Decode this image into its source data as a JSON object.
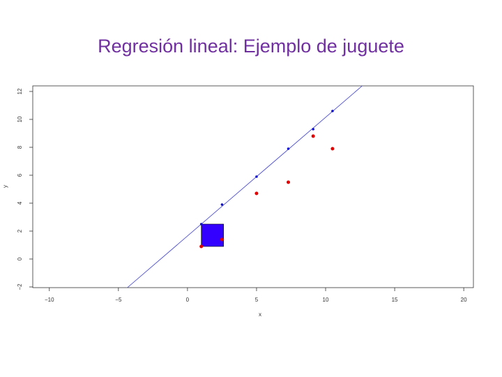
{
  "chart_data": {
    "type": "scatter",
    "title": "Regresión lineal: Ejemplo de juguete",
    "x_label": "x",
    "y_label": "y",
    "x": [
      1,
      2.5,
      5,
      7.3,
      9.1,
      10.5
    ],
    "series": [
      {
        "color": "#e00000",
        "values": [
          0.9,
          1.4,
          4.7,
          5.5,
          8.8,
          7.9
        ]
      },
      {
        "color": "#1010cc",
        "values": [
          2.5,
          3.9,
          5.9,
          7.9,
          9.3,
          10.6
        ]
      }
    ],
    "fit_line": {
      "intercept": 1.65,
      "slope": 0.85,
      "color": "#3a3ad0"
    },
    "residual_square_color": "#3300ff",
    "xlim": [
      -11.2,
      20.7
    ],
    "xticks": [
      {
        "value": -10,
        "label": "−10"
      },
      {
        "value": -5,
        "label": "−5"
      },
      0,
      5,
      10,
      15,
      20
    ],
    "ylim": [
      -2.05,
      12.4
    ],
    "yticks": [
      {
        "value": -2,
        "label": "−2"
      },
      0,
      2,
      4,
      6,
      8,
      10,
      12
    ]
  }
}
